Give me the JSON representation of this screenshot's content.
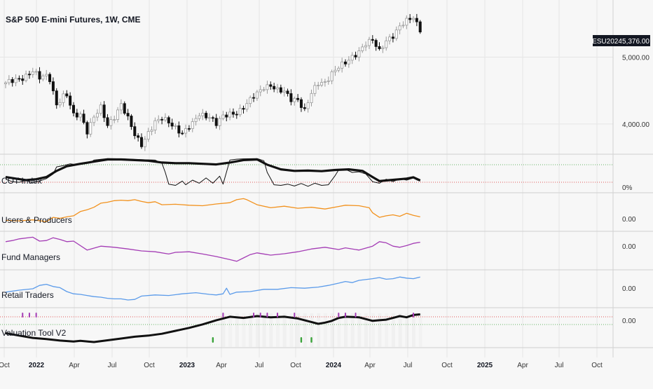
{
  "header": {
    "title": "S&P 500 E-mini Futures, 1W, CME"
  },
  "price_badge": {
    "symbol": "ESU2024",
    "value": "5,376.00"
  },
  "colors": {
    "grid": "#e6e6e6",
    "separator": "#cfcfcf",
    "up_candle": "#9a9a9a",
    "down_candle": "#111111",
    "users_line": "#f2921e",
    "fund_line": "#a43db5",
    "retail_line": "#5b9bea",
    "red_dotted": "#e25858",
    "green_dotted": "#66b566",
    "marker_purple": "#a43db5",
    "marker_green": "#3aa33a"
  },
  "chart_data": [
    {
      "type": "candlestick",
      "title": "S&P 500 E-mini Futures, 1W, CME",
      "y_ticks": [
        "5,000.00",
        "4,000.00"
      ],
      "ylim": [
        3600,
        5750
      ],
      "x_ticks": [
        "Oct",
        "2022",
        "Apr",
        "Jul",
        "Oct",
        "2023",
        "Apr",
        "Jul",
        "Oct",
        "2024",
        "Apr",
        "Jul",
        "Oct",
        "2025",
        "Apr",
        "Jul",
        "Oct"
      ],
      "x_tick_bold": [
        false,
        true,
        false,
        false,
        false,
        true,
        false,
        false,
        false,
        true,
        false,
        false,
        false,
        true,
        false,
        false,
        false
      ],
      "close_path": [
        [
          0,
          4600
        ],
        [
          5,
          4700
        ],
        [
          8,
          4790
        ],
        [
          10,
          4680
        ],
        [
          12,
          4720
        ],
        [
          13,
          4680
        ],
        [
          15,
          4300
        ],
        [
          17,
          4410
        ],
        [
          18,
          4420
        ],
        [
          20,
          4120
        ],
        [
          22,
          4150
        ],
        [
          24,
          3900
        ],
        [
          26,
          4100
        ],
        [
          28,
          4230
        ],
        [
          30,
          3980
        ],
        [
          32,
          4120
        ],
        [
          34,
          4300
        ],
        [
          36,
          4070
        ],
        [
          38,
          3830
        ],
        [
          40,
          3700
        ],
        [
          42,
          3880
        ],
        [
          44,
          4020
        ],
        [
          46,
          4070
        ],
        [
          48,
          4030
        ],
        [
          50,
          3960
        ],
        [
          52,
          3860
        ],
        [
          55,
          3990
        ],
        [
          57,
          4150
        ],
        [
          60,
          4120
        ],
        [
          62,
          4000
        ],
        [
          64,
          4100
        ],
        [
          66,
          4150
        ],
        [
          68,
          4180
        ],
        [
          70,
          4250
        ],
        [
          72,
          4350
        ],
        [
          74,
          4450
        ],
        [
          76,
          4560
        ],
        [
          78,
          4590
        ],
        [
          80,
          4500
        ],
        [
          82,
          4470
        ],
        [
          84,
          4370
        ],
        [
          86,
          4380
        ],
        [
          88,
          4200
        ],
        [
          90,
          4450
        ],
        [
          92,
          4600
        ],
        [
          94,
          4630
        ],
        [
          96,
          4770
        ],
        [
          98,
          4850
        ],
        [
          100,
          4900
        ],
        [
          102,
          5000
        ],
        [
          104,
          5100
        ],
        [
          106,
          5210
        ],
        [
          108,
          5240
        ],
        [
          110,
          5080
        ],
        [
          112,
          5260
        ],
        [
          114,
          5330
        ],
        [
          116,
          5450
        ],
        [
          118,
          5530
        ],
        [
          120,
          5600
        ],
        [
          121,
          5510
        ],
        [
          122,
          5376
        ]
      ]
    },
    {
      "type": "line",
      "name": "COT Index",
      "label": "COT Index",
      "axis_label": "0%",
      "series": [
        {
          "name": "thin",
          "points": [
            [
              0,
              28
            ],
            [
              2,
              20
            ],
            [
              4,
              18
            ],
            [
              6,
              25
            ],
            [
              8,
              16
            ],
            [
              10,
              22
            ],
            [
              12,
              30
            ],
            [
              14,
              45
            ],
            [
              15,
              68
            ],
            [
              17,
              72
            ],
            [
              19,
              78
            ],
            [
              21,
              75
            ],
            [
              23,
              80
            ],
            [
              25,
              82
            ],
            [
              26,
              90
            ],
            [
              30,
              95
            ],
            [
              34,
              94
            ],
            [
              38,
              92
            ],
            [
              44,
              90
            ],
            [
              46,
              80
            ],
            [
              47,
              50
            ],
            [
              48,
              12
            ],
            [
              50,
              8
            ],
            [
              52,
              22
            ],
            [
              53,
              10
            ],
            [
              55,
              25
            ],
            [
              57,
              15
            ],
            [
              59,
              32
            ],
            [
              61,
              15
            ],
            [
              63,
              38
            ],
            [
              64,
              12
            ],
            [
              66,
              90
            ],
            [
              68,
              93
            ],
            [
              70,
              94
            ],
            [
              74,
              95
            ],
            [
              76,
              88
            ],
            [
              77,
              50
            ],
            [
              79,
              10
            ],
            [
              81,
              8
            ],
            [
              83,
              12
            ],
            [
              85,
              6
            ],
            [
              87,
              14
            ],
            [
              89,
              5
            ],
            [
              91,
              15
            ],
            [
              93,
              8
            ],
            [
              95,
              10
            ],
            [
              97,
              40
            ],
            [
              98,
              58
            ],
            [
              100,
              60
            ],
            [
              102,
              50
            ],
            [
              104,
              52
            ],
            [
              106,
              45
            ],
            [
              108,
              20
            ],
            [
              110,
              15
            ],
            [
              112,
              28
            ],
            [
              114,
              20
            ],
            [
              116,
              30
            ],
            [
              118,
              25
            ],
            [
              120,
              32
            ],
            [
              121,
              26
            ],
            [
              122,
              22
            ]
          ]
        },
        {
          "name": "bold",
          "points": [
            [
              0,
              35
            ],
            [
              3,
              30
            ],
            [
              6,
              25
            ],
            [
              9,
              28
            ],
            [
              12,
              35
            ],
            [
              15,
              55
            ],
            [
              18,
              70
            ],
            [
              22,
              78
            ],
            [
              26,
              85
            ],
            [
              30,
              92
            ],
            [
              34,
              92
            ],
            [
              38,
              90
            ],
            [
              42,
              88
            ],
            [
              46,
              82
            ],
            [
              50,
              80
            ],
            [
              54,
              80
            ],
            [
              58,
              78
            ],
            [
              62,
              76
            ],
            [
              66,
              82
            ],
            [
              70,
              90
            ],
            [
              74,
              92
            ],
            [
              77,
              75
            ],
            [
              81,
              60
            ],
            [
              85,
              55
            ],
            [
              89,
              56
            ],
            [
              93,
              54
            ],
            [
              97,
              58
            ],
            [
              101,
              60
            ],
            [
              105,
              55
            ],
            [
              108,
              35
            ],
            [
              110,
              22
            ],
            [
              113,
              25
            ],
            [
              116,
              28
            ],
            [
              118,
              30
            ],
            [
              120,
              34
            ],
            [
              122,
              24
            ]
          ]
        }
      ]
    },
    {
      "type": "line",
      "name": "Users & Producers",
      "label": "Users & Producers",
      "axis_label": "0.00",
      "points": [
        [
          0,
          10
        ],
        [
          4,
          8
        ],
        [
          8,
          12
        ],
        [
          12,
          5
        ],
        [
          14,
          22
        ],
        [
          16,
          18
        ],
        [
          18,
          24
        ],
        [
          20,
          28
        ],
        [
          22,
          45
        ],
        [
          24,
          52
        ],
        [
          26,
          62
        ],
        [
          28,
          78
        ],
        [
          30,
          82
        ],
        [
          32,
          88
        ],
        [
          34,
          90
        ],
        [
          36,
          88
        ],
        [
          38,
          92
        ],
        [
          40,
          85
        ],
        [
          42,
          80
        ],
        [
          44,
          84
        ],
        [
          46,
          72
        ],
        [
          50,
          74
        ],
        [
          54,
          70
        ],
        [
          58,
          68
        ],
        [
          62,
          75
        ],
        [
          66,
          80
        ],
        [
          68,
          92
        ],
        [
          70,
          96
        ],
        [
          71,
          92
        ],
        [
          74,
          72
        ],
        [
          78,
          60
        ],
        [
          82,
          66
        ],
        [
          86,
          58
        ],
        [
          90,
          62
        ],
        [
          94,
          55
        ],
        [
          98,
          65
        ],
        [
          100,
          70
        ],
        [
          104,
          68
        ],
        [
          107,
          60
        ],
        [
          108,
          40
        ],
        [
          110,
          22
        ],
        [
          112,
          28
        ],
        [
          114,
          32
        ],
        [
          116,
          26
        ],
        [
          118,
          38
        ],
        [
          120,
          30
        ],
        [
          122,
          24
        ]
      ]
    },
    {
      "type": "line",
      "name": "Fund Managers",
      "label": "Fund Managers",
      "axis_label": "0.00",
      "points": [
        [
          0,
          78
        ],
        [
          2,
          82
        ],
        [
          4,
          88
        ],
        [
          8,
          94
        ],
        [
          10,
          80
        ],
        [
          12,
          82
        ],
        [
          14,
          92
        ],
        [
          16,
          86
        ],
        [
          18,
          78
        ],
        [
          20,
          80
        ],
        [
          24,
          48
        ],
        [
          28,
          62
        ],
        [
          32,
          58
        ],
        [
          36,
          52
        ],
        [
          40,
          45
        ],
        [
          44,
          42
        ],
        [
          48,
          34
        ],
        [
          50,
          40
        ],
        [
          54,
          42
        ],
        [
          58,
          34
        ],
        [
          62,
          25
        ],
        [
          66,
          14
        ],
        [
          68,
          8
        ],
        [
          70,
          20
        ],
        [
          72,
          32
        ],
        [
          74,
          38
        ],
        [
          78,
          30
        ],
        [
          82,
          35
        ],
        [
          86,
          42
        ],
        [
          90,
          52
        ],
        [
          94,
          58
        ],
        [
          98,
          50
        ],
        [
          100,
          56
        ],
        [
          104,
          48
        ],
        [
          108,
          62
        ],
        [
          110,
          78
        ],
        [
          112,
          74
        ],
        [
          114,
          62
        ],
        [
          116,
          58
        ],
        [
          118,
          64
        ],
        [
          120,
          72
        ],
        [
          122,
          76
        ]
      ]
    },
    {
      "type": "line",
      "name": "Retail Traders",
      "label": "Retail Traders",
      "axis_label": "0.00",
      "points": [
        [
          0,
          38
        ],
        [
          4,
          45
        ],
        [
          8,
          50
        ],
        [
          10,
          62
        ],
        [
          12,
          66
        ],
        [
          14,
          58
        ],
        [
          16,
          54
        ],
        [
          18,
          40
        ],
        [
          20,
          32
        ],
        [
          22,
          30
        ],
        [
          24,
          26
        ],
        [
          26,
          22
        ],
        [
          28,
          20
        ],
        [
          30,
          16
        ],
        [
          32,
          14
        ],
        [
          34,
          14
        ],
        [
          36,
          10
        ],
        [
          38,
          12
        ],
        [
          40,
          24
        ],
        [
          44,
          28
        ],
        [
          48,
          26
        ],
        [
          52,
          32
        ],
        [
          56,
          36
        ],
        [
          60,
          30
        ],
        [
          62,
          28
        ],
        [
          64,
          32
        ],
        [
          65,
          52
        ],
        [
          66,
          30
        ],
        [
          68,
          38
        ],
        [
          72,
          40
        ],
        [
          76,
          48
        ],
        [
          80,
          48
        ],
        [
          84,
          54
        ],
        [
          88,
          52
        ],
        [
          92,
          56
        ],
        [
          95,
          62
        ],
        [
          98,
          70
        ],
        [
          100,
          76
        ],
        [
          102,
          72
        ],
        [
          104,
          80
        ],
        [
          108,
          86
        ],
        [
          110,
          90
        ],
        [
          112,
          84
        ],
        [
          114,
          86
        ],
        [
          116,
          92
        ],
        [
          118,
          88
        ],
        [
          120,
          86
        ],
        [
          122,
          92
        ]
      ]
    },
    {
      "type": "line",
      "name": "Valuation Tool V2",
      "label": "Valuation Tool V2",
      "axis_label": "0.00",
      "points": [
        [
          0,
          30
        ],
        [
          4,
          22
        ],
        [
          8,
          14
        ],
        [
          12,
          10
        ],
        [
          16,
          5
        ],
        [
          20,
          2
        ],
        [
          22,
          4
        ],
        [
          26,
          0
        ],
        [
          30,
          6
        ],
        [
          34,
          12
        ],
        [
          38,
          18
        ],
        [
          42,
          22
        ],
        [
          46,
          28
        ],
        [
          50,
          38
        ],
        [
          54,
          48
        ],
        [
          58,
          60
        ],
        [
          62,
          74
        ],
        [
          64,
          80
        ],
        [
          66,
          86
        ],
        [
          70,
          82
        ],
        [
          74,
          88
        ],
        [
          78,
          84
        ],
        [
          82,
          86
        ],
        [
          86,
          80
        ],
        [
          90,
          68
        ],
        [
          92,
          62
        ],
        [
          94,
          66
        ],
        [
          96,
          72
        ],
        [
          98,
          82
        ],
        [
          100,
          86
        ],
        [
          104,
          84
        ],
        [
          108,
          72
        ],
        [
          110,
          74
        ],
        [
          112,
          76
        ],
        [
          114,
          82
        ],
        [
          116,
          88
        ],
        [
          118,
          84
        ],
        [
          120,
          92
        ],
        [
          122,
          94
        ]
      ]
    }
  ]
}
